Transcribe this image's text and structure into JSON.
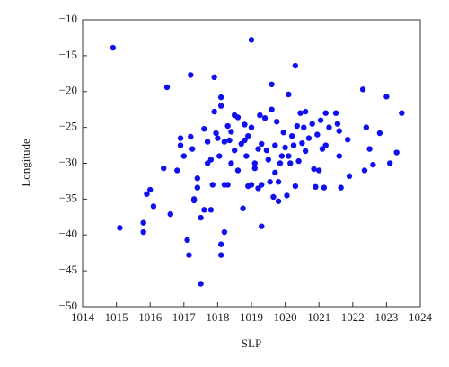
{
  "chart_data": {
    "type": "scatter",
    "x_label": "SLP",
    "y_label": "Longitude",
    "color": "#1010ee",
    "xlim": [
      1014,
      1024
    ],
    "ylim": [
      -50,
      -10
    ],
    "xticks": [
      1014,
      1015,
      1016,
      1017,
      1018,
      1019,
      1020,
      1021,
      1022,
      1023,
      1024
    ],
    "yticks": [
      {
        "value": -50,
        "label": "−50"
      },
      {
        "value": -45,
        "label": "−45"
      },
      {
        "value": -40,
        "label": "−40"
      },
      {
        "value": -35,
        "label": "−35"
      },
      {
        "value": -30,
        "label": "−30"
      },
      {
        "value": -25,
        "label": "−25"
      },
      {
        "value": -20,
        "label": "−20"
      },
      {
        "value": -15,
        "label": "−15"
      },
      {
        "value": -10,
        "label": "−10"
      }
    ],
    "x": [
      1014.9,
      1015.1,
      1015.8,
      1015.8,
      1015.9,
      1016.0,
      1016.1,
      1016.4,
      1016.5,
      1016.6,
      1016.8,
      1016.9,
      1016.9,
      1017.0,
      1017.1,
      1017.15,
      1017.2,
      1017.2,
      1017.25,
      1017.3,
      1017.3,
      1017.4,
      1017.4,
      1017.5,
      1017.5,
      1017.6,
      1017.6,
      1017.7,
      1017.7,
      1017.8,
      1017.8,
      1017.85,
      1017.9,
      1017.95,
      1017.9,
      1018.0,
      1018.05,
      1018.1,
      1018.1,
      1018.1,
      1018.1,
      1018.2,
      1018.2,
      1018.2,
      1018.3,
      1018.3,
      1018.35,
      1018.4,
      1018.4,
      1018.5,
      1018.5,
      1018.6,
      1018.6,
      1018.7,
      1018.75,
      1018.8,
      1018.8,
      1018.85,
      1018.9,
      1018.9,
      1019.0,
      1019.0,
      1019.0,
      1019.1,
      1019.1,
      1019.2,
      1019.2,
      1019.25,
      1019.3,
      1019.3,
      1019.3,
      1019.4,
      1019.45,
      1019.5,
      1019.55,
      1019.6,
      1019.6,
      1019.65,
      1019.7,
      1019.7,
      1019.75,
      1019.8,
      1019.8,
      1019.85,
      1019.9,
      1019.95,
      1020.0,
      1020.05,
      1020.1,
      1020.1,
      1020.15,
      1020.2,
      1020.25,
      1020.3,
      1020.3,
      1020.35,
      1020.4,
      1020.45,
      1020.5,
      1020.55,
      1020.6,
      1020.6,
      1020.7,
      1020.8,
      1020.85,
      1020.9,
      1020.95,
      1021.0,
      1021.05,
      1021.1,
      1021.15,
      1021.2,
      1021.2,
      1021.3,
      1021.5,
      1021.55,
      1021.6,
      1021.6,
      1021.65,
      1021.85,
      1021.9,
      1022.3,
      1022.35,
      1022.4,
      1022.5,
      1022.6,
      1022.8,
      1023.0,
      1023.1,
      1023.3,
      1023.45
    ],
    "y": [
      -13.9,
      -39,
      -38.3,
      -39.6,
      -34.3,
      -33.7,
      -36,
      -30.7,
      -19.4,
      -37.1,
      -31,
      -27.5,
      -26.5,
      -29,
      -40.7,
      -42.8,
      -17.7,
      -26.3,
      -28,
      -35,
      -35.2,
      -32.1,
      -33.4,
      -46.8,
      -37.6,
      -25.2,
      -36.5,
      -30,
      -27,
      -29.5,
      -36.5,
      -33,
      -18,
      -25.8,
      -22.8,
      -26.5,
      -29,
      -42.8,
      -41.3,
      -20.8,
      -22,
      -33,
      -39.6,
      -27,
      -33,
      -24.8,
      -26.8,
      -30,
      -25.6,
      -23.3,
      -28.2,
      -31,
      -23.6,
      -27.3,
      -36.3,
      -26.8,
      -24.6,
      -29,
      -33.2,
      -26.2,
      -12.8,
      -33,
      -25,
      -30,
      -30.7,
      -33.5,
      -28,
      -23.3,
      -27.3,
      -33,
      -38.8,
      -23.7,
      -28.2,
      -29.5,
      -32.6,
      -19,
      -22.5,
      -34.7,
      -27.5,
      -31.3,
      -24.2,
      -35.3,
      -32.6,
      -30,
      -29,
      -25.7,
      -27.8,
      -34.5,
      -20.4,
      -29,
      -30,
      -26.2,
      -27.5,
      -16.4,
      -33.2,
      -24.8,
      -29.7,
      -23,
      -27.2,
      -25,
      -28.3,
      -22.8,
      -26.5,
      -24.5,
      -30.8,
      -33.3,
      -26,
      -31,
      -24,
      -28,
      -33.4,
      -27.5,
      -23,
      -25,
      -23,
      -24.5,
      -25.5,
      -29,
      -33.4,
      -26.7,
      -31.8,
      -19.7,
      -31,
      -25,
      -28,
      -30.2,
      -25.8,
      -20.7,
      -30,
      -28.5,
      -23
    ]
  }
}
